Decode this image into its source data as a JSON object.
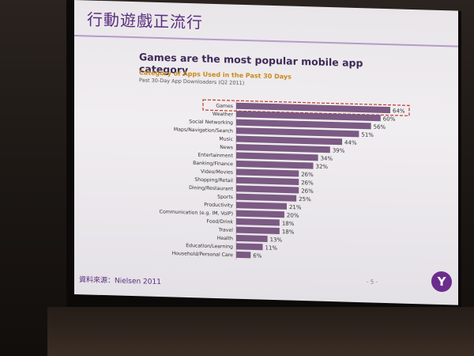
{
  "slide": {
    "header_title": "行動遊戲正流行",
    "source": "資料來源：Nielsen 2011",
    "page_number": "- 5 -",
    "logo_glyph": "Y"
  },
  "chart_data": {
    "type": "bar",
    "orientation": "horizontal",
    "title": "Games are the most popular mobile app category",
    "subtitle": "Category of Apps Used in the Past 30 Days",
    "note": "Past 30-Day App Downloaders (Q2 2011)",
    "categories": [
      "Games",
      "Weather",
      "Social Networking",
      "Maps/Navigation/Search",
      "Music",
      "News",
      "Entertainment",
      "Banking/Finance",
      "Video/Movies",
      "Shopping/Retail",
      "Dining/Restaurant",
      "Sports",
      "Productivity",
      "Communication (e.g. IM, VoIP)",
      "Food/Drink",
      "Travel",
      "Health",
      "Education/Learning",
      "Household/Personal Care"
    ],
    "values": [
      64,
      60,
      56,
      51,
      44,
      39,
      34,
      32,
      26,
      26,
      26,
      25,
      21,
      20,
      18,
      18,
      13,
      11,
      6
    ],
    "labels": [
      "64%",
      "60%",
      "56%",
      "51%",
      "44%",
      "39%",
      "34%",
      "32%",
      "26%",
      "26%",
      "26%",
      "25%",
      "21%",
      "20%",
      "18%",
      "18%",
      "13%",
      "11%",
      "6%"
    ],
    "xlim": [
      0,
      64
    ],
    "grid": false,
    "highlighted_category": "Games",
    "colors": {
      "bar": "#7b5a83",
      "highlight_box": "#c0392b",
      "brand": "#5b2d7d",
      "subtitle": "#c88b1a"
    }
  }
}
